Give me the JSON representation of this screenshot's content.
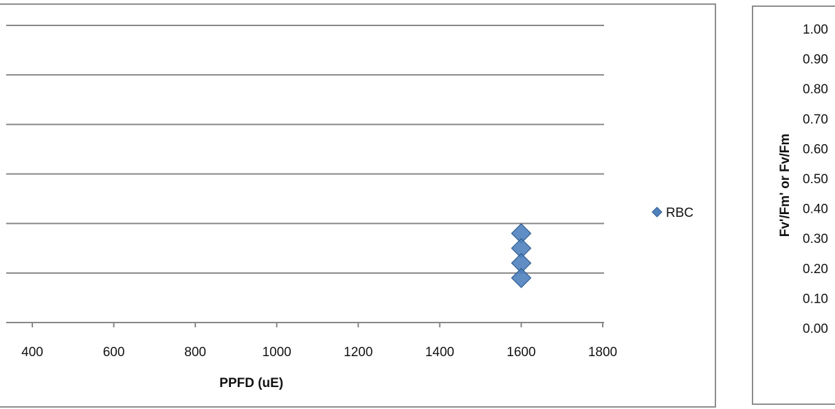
{
  "chart_data": [
    {
      "type": "scatter",
      "xlabel": "PPFD (uE)",
      "ylabel": "",
      "xlim": [
        400,
        1800
      ],
      "x_ticks": [
        400,
        600,
        800,
        1000,
        1200,
        1400,
        1600,
        1800
      ],
      "grid": true,
      "legend_position": "right",
      "series": [
        {
          "name": "RBC",
          "color": "#4f81bd",
          "marker": "diamond",
          "x": [
            1600,
            1600,
            1600,
            1600
          ],
          "y": [
            0.18,
            0.15,
            0.12,
            0.09
          ]
        }
      ]
    },
    {
      "type": "scatter",
      "ylabel": "Fv'/Fm' or Fv/Fm",
      "ylim": [
        0.0,
        1.0
      ],
      "y_ticks": [
        "0.00",
        "0.10",
        "0.20",
        "0.30",
        "0.40",
        "0.50",
        "0.60",
        "0.70",
        "0.80",
        "0.90",
        "1.00"
      ],
      "series": []
    }
  ]
}
